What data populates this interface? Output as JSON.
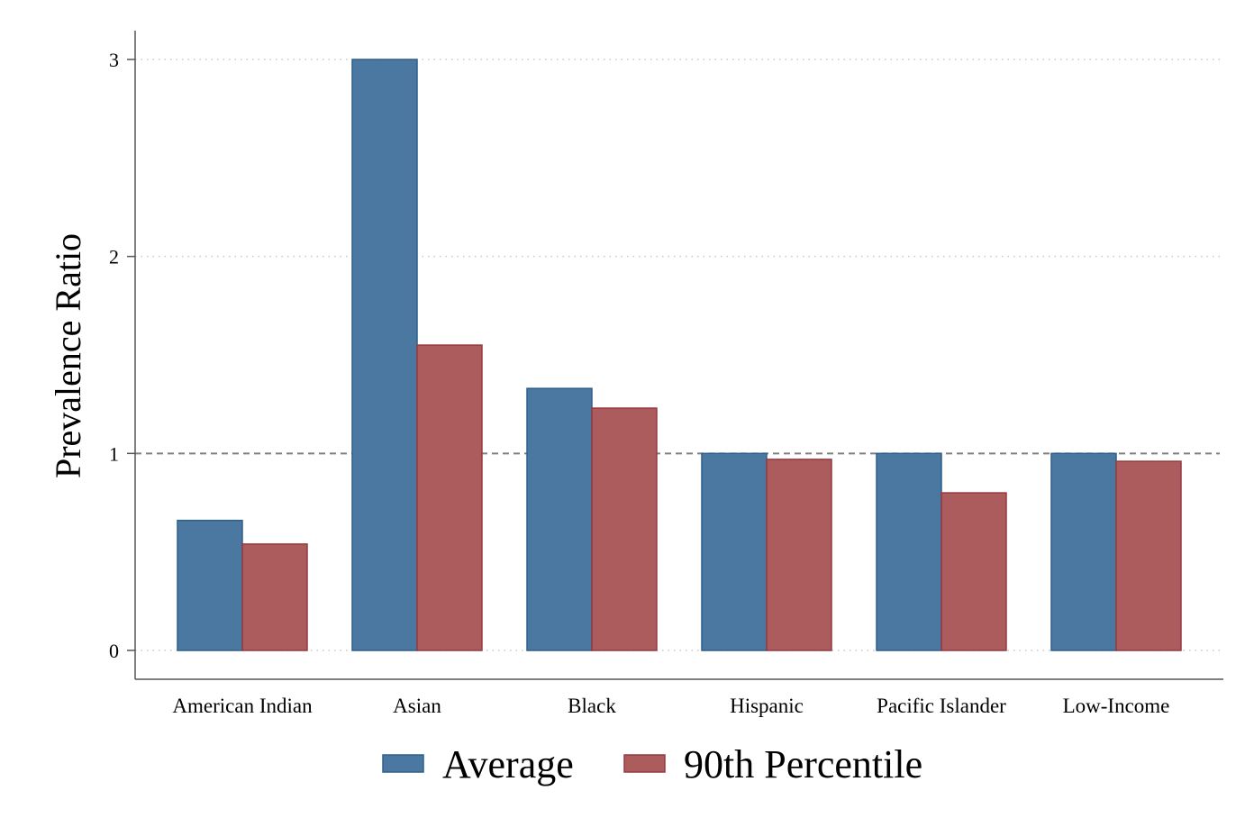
{
  "chart_data": {
    "type": "bar",
    "title": "",
    "xlabel": "",
    "ylabel": "Prevalence Ratio",
    "ylim": [
      0,
      3.15
    ],
    "yticks": [
      0,
      1,
      2,
      3
    ],
    "grid": "horizontal dotted",
    "reference_line": 1,
    "legend_position": "bottom",
    "categories": [
      "American Indian",
      "Asian",
      "Black",
      "Hispanic",
      "Pacific Islander",
      "Low-Income"
    ],
    "series": [
      {
        "name": "Average",
        "color": "#4A78A1",
        "values": [
          0.66,
          3.0,
          1.33,
          1.0,
          1.0,
          1.0
        ]
      },
      {
        "name": "90th Percentile",
        "color": "#AD5C5E",
        "values": [
          0.54,
          1.55,
          1.23,
          0.97,
          0.8,
          0.96
        ]
      }
    ]
  }
}
